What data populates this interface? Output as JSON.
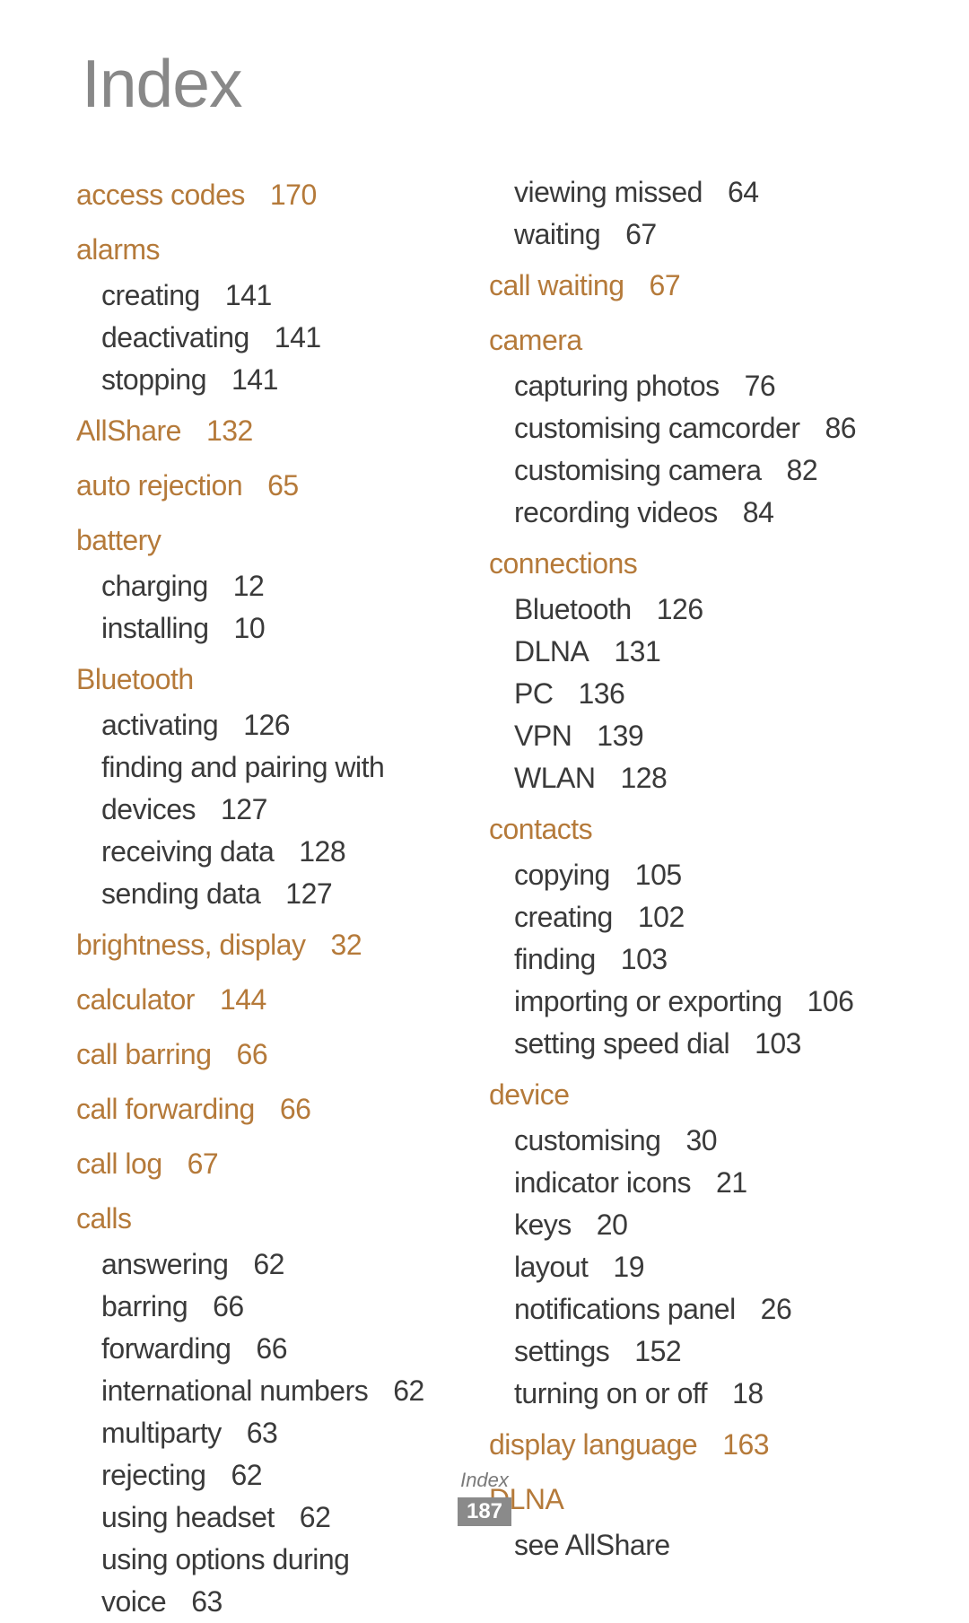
{
  "title": "Index",
  "footer_label": "Index",
  "footer_page": "187",
  "left": [
    {
      "type": "topic",
      "label": "access codes",
      "page": "170"
    },
    {
      "type": "gap"
    },
    {
      "type": "topic",
      "label": "alarms"
    },
    {
      "type": "sub",
      "label": "creating",
      "page": "141"
    },
    {
      "type": "sub",
      "label": "deactivating",
      "page": "141"
    },
    {
      "type": "sub",
      "label": "stopping",
      "page": "141"
    },
    {
      "type": "gap"
    },
    {
      "type": "topic",
      "label": "AllShare",
      "page": "132"
    },
    {
      "type": "gap"
    },
    {
      "type": "topic",
      "label": "auto rejection",
      "page": "65"
    },
    {
      "type": "gap"
    },
    {
      "type": "topic",
      "label": "battery"
    },
    {
      "type": "sub",
      "label": "charging",
      "page": "12"
    },
    {
      "type": "sub",
      "label": "installing",
      "page": "10"
    },
    {
      "type": "gap"
    },
    {
      "type": "topic",
      "label": "Bluetooth"
    },
    {
      "type": "sub",
      "label": "activating",
      "page": "126"
    },
    {
      "type": "sub",
      "label": "finding and pairing with devices",
      "page": "127",
      "wrap": true
    },
    {
      "type": "sub",
      "label": "receiving data",
      "page": "128"
    },
    {
      "type": "sub",
      "label": "sending data",
      "page": "127"
    },
    {
      "type": "gap"
    },
    {
      "type": "topic",
      "label": "brightness, display",
      "page": "32"
    },
    {
      "type": "gap"
    },
    {
      "type": "topic",
      "label": "calculator",
      "page": "144"
    },
    {
      "type": "gap"
    },
    {
      "type": "topic",
      "label": "call barring",
      "page": "66"
    },
    {
      "type": "gap"
    },
    {
      "type": "topic",
      "label": "call forwarding",
      "page": "66"
    },
    {
      "type": "gap"
    },
    {
      "type": "topic",
      "label": "call log",
      "page": "67"
    },
    {
      "type": "gap"
    },
    {
      "type": "topic",
      "label": "calls"
    },
    {
      "type": "sub",
      "label": "answering",
      "page": "62"
    },
    {
      "type": "sub",
      "label": "barring",
      "page": "66"
    },
    {
      "type": "sub",
      "label": "forwarding",
      "page": "66"
    },
    {
      "type": "sub",
      "label": "international numbers",
      "page": "62"
    },
    {
      "type": "sub",
      "label": "multiparty",
      "page": "63"
    },
    {
      "type": "sub",
      "label": "rejecting",
      "page": "62"
    },
    {
      "type": "sub",
      "label": "using headset",
      "page": "62"
    },
    {
      "type": "sub",
      "label": "using options during voice",
      "page": "63",
      "wrap": true
    }
  ],
  "right": [
    {
      "type": "sub",
      "label": "viewing missed",
      "page": "64"
    },
    {
      "type": "sub",
      "label": "waiting",
      "page": "67"
    },
    {
      "type": "gap"
    },
    {
      "type": "topic",
      "label": "call waiting",
      "page": "67"
    },
    {
      "type": "gap"
    },
    {
      "type": "topic",
      "label": "camera"
    },
    {
      "type": "sub",
      "label": "capturing photos",
      "page": "76"
    },
    {
      "type": "sub",
      "label": "customising camcorder",
      "page": "86"
    },
    {
      "type": "sub",
      "label": "customising camera",
      "page": "82"
    },
    {
      "type": "sub",
      "label": "recording videos",
      "page": "84"
    },
    {
      "type": "gap"
    },
    {
      "type": "topic",
      "label": "connections"
    },
    {
      "type": "sub",
      "label": "Bluetooth",
      "page": "126"
    },
    {
      "type": "sub",
      "label": "DLNA",
      "page": "131"
    },
    {
      "type": "sub",
      "label": "PC",
      "page": "136"
    },
    {
      "type": "sub",
      "label": "VPN",
      "page": "139"
    },
    {
      "type": "sub",
      "label": "WLAN",
      "page": "128"
    },
    {
      "type": "gap"
    },
    {
      "type": "topic",
      "label": "contacts"
    },
    {
      "type": "sub",
      "label": "copying",
      "page": "105"
    },
    {
      "type": "sub",
      "label": "creating",
      "page": "102"
    },
    {
      "type": "sub",
      "label": "finding",
      "page": "103"
    },
    {
      "type": "sub",
      "label": "importing or exporting",
      "page": "106"
    },
    {
      "type": "sub",
      "label": "setting speed dial",
      "page": "103"
    },
    {
      "type": "gap"
    },
    {
      "type": "topic",
      "label": "device"
    },
    {
      "type": "sub",
      "label": "customising",
      "page": "30"
    },
    {
      "type": "sub",
      "label": "indicator icons",
      "page": "21"
    },
    {
      "type": "sub",
      "label": "keys",
      "page": "20"
    },
    {
      "type": "sub",
      "label": "layout",
      "page": "19"
    },
    {
      "type": "sub",
      "label": "notifications panel",
      "page": "26"
    },
    {
      "type": "sub",
      "label": "settings",
      "page": "152"
    },
    {
      "type": "sub",
      "label": "turning on or off",
      "page": "18"
    },
    {
      "type": "gap"
    },
    {
      "type": "topic",
      "label": "display language",
      "page": "163"
    },
    {
      "type": "gap"
    },
    {
      "type": "topic",
      "label": "DLNA"
    },
    {
      "type": "see",
      "label": "see AllShare"
    }
  ]
}
